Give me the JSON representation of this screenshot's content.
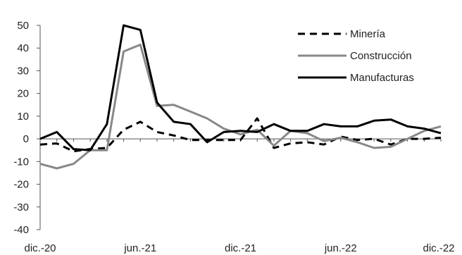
{
  "chart_data": {
    "type": "line",
    "title": "",
    "xlabel": "",
    "ylabel": "",
    "x": [
      "dic.-20",
      "ene.-21",
      "feb.-21",
      "mar.-21",
      "abr.-21",
      "may.-21",
      "jun.-21",
      "jul.-21",
      "ago.-21",
      "sep.-21",
      "oct.-21",
      "nov.-21",
      "dic.-21",
      "ene.-22",
      "feb.-22",
      "mar.-22",
      "abr.-22",
      "may.-22",
      "jun.-22",
      "jul.-22",
      "ago.-22",
      "sep.-22",
      "oct.-22",
      "nov.-22",
      "dic.-22"
    ],
    "x_tick_labels": [
      "dic.-20",
      "jun.-21",
      "dic.-21",
      "jun.-22",
      "dic.-22"
    ],
    "ylim": [
      -40,
      50
    ],
    "y_ticks": [
      -40,
      -30,
      -20,
      -10,
      0,
      10,
      20,
      30,
      40,
      50
    ],
    "grid": false,
    "legend_position": "top-right",
    "series": [
      {
        "name": "Minería",
        "style": "dashed",
        "color": "#000000",
        "values": [
          -2.5,
          -2,
          -5.5,
          -4.5,
          -4,
          4,
          7.5,
          3,
          1.5,
          -0.5,
          -0.5,
          -0.5,
          -0.5,
          9,
          -4,
          -2,
          -1.5,
          -2.5,
          1,
          -0.5,
          0,
          -2.5,
          0,
          0,
          0.5
        ]
      },
      {
        "name": "Construcción",
        "style": "solid",
        "color": "#888888",
        "values": [
          -11,
          -13,
          -11,
          -5,
          -5,
          38.5,
          41.5,
          14.5,
          15,
          12,
          9,
          4.5,
          2,
          4,
          -3,
          3.5,
          2.5,
          -1,
          0.5,
          -1.5,
          -4,
          -3.5,
          0,
          3.5,
          5.5
        ]
      },
      {
        "name": "Manufacturas",
        "style": "solid",
        "color": "#000000",
        "values": [
          0,
          3,
          -4.5,
          -5,
          6.5,
          50,
          48,
          16,
          7.5,
          6.5,
          -1.5,
          3,
          3.5,
          3,
          6.5,
          3.5,
          3.5,
          6.5,
          5.5,
          5.5,
          8,
          8.5,
          5.5,
          4.5,
          2.5
        ]
      }
    ]
  }
}
